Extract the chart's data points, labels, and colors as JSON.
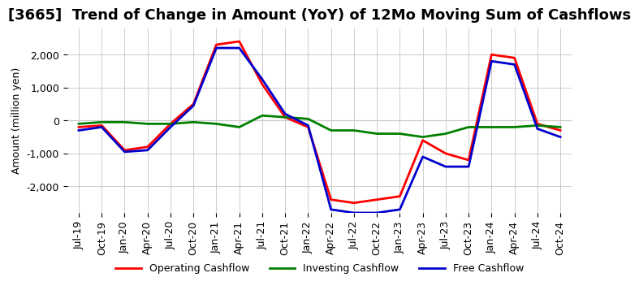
{
  "title": "[3665]  Trend of Change in Amount (YoY) of 12Mo Moving Sum of Cashflows",
  "ylabel": "Amount (million yen)",
  "ylim": [
    -2800,
    2800
  ],
  "yticks": [
    -2000,
    -1000,
    0,
    1000,
    2000
  ],
  "dates": [
    "Jul-19",
    "Oct-19",
    "Jan-20",
    "Apr-20",
    "Jul-20",
    "Oct-20",
    "Jan-21",
    "Apr-21",
    "Jul-21",
    "Oct-21",
    "Jan-22",
    "Apr-22",
    "Jul-22",
    "Oct-22",
    "Jan-23",
    "Apr-23",
    "Jul-23",
    "Oct-23",
    "Jan-24",
    "Apr-24",
    "Jul-24",
    "Oct-24"
  ],
  "operating": [
    -200,
    -150,
    -900,
    -800,
    -100,
    500,
    2300,
    2400,
    1100,
    100,
    -200,
    -2400,
    -2500,
    -2400,
    -2300,
    -600,
    -1000,
    -1200,
    2000,
    1900,
    -100,
    -300
  ],
  "investing": [
    -100,
    -50,
    -50,
    -100,
    -100,
    -50,
    -100,
    -200,
    150,
    100,
    50,
    -300,
    -300,
    -400,
    -400,
    -500,
    -400,
    -200,
    -200,
    -200,
    -150,
    -200
  ],
  "free": [
    -300,
    -200,
    -950,
    -900,
    -200,
    450,
    2200,
    2200,
    1250,
    200,
    -150,
    -2700,
    -2800,
    -2800,
    -2700,
    -1100,
    -1400,
    -1400,
    1800,
    1700,
    -250,
    -500
  ],
  "op_color": "#ff0000",
  "inv_color": "#008000",
  "free_color": "#0000cc",
  "bg_color": "#ffffff",
  "grid_color": "#cccccc",
  "title_fontsize": 13,
  "axis_fontsize": 9,
  "legend_fontsize": 9
}
